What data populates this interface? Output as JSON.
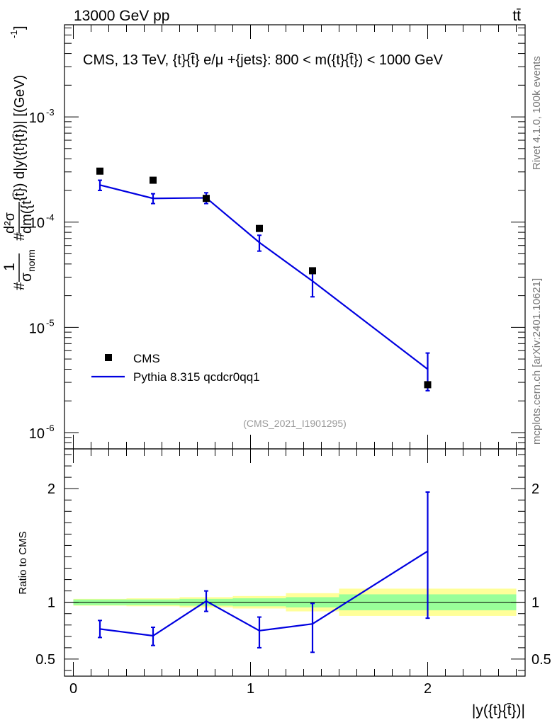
{
  "header": {
    "energy_label": "13000 GeV pp",
    "process_label": "tt̄"
  },
  "side_labels": {
    "rivet": "Rivet 4.1.0,  100k events",
    "mcplots": "mcplots.cern.ch [arXiv:2401.10621]"
  },
  "chart_data": [
    {
      "type": "scatter",
      "panel": "main",
      "title": "CMS, 13 TeV, {t}{t̄} e/μ +{jets}: 800 < m({t}{t̄}) < 1000 GeV",
      "ylabel": "#1/σnorm #d²σ/dm({t}{t̄}) d|y({t}{t̄})| [(GeV)⁻¹]",
      "ylabel_parts": {
        "prefix1": "#",
        "one": "1",
        "sigma_norm": "σ",
        "norm_sub": "norm",
        "prefix2": "#",
        "numerator": "d²σ",
        "numerator_suffix": "{t̄}) d|y({t}{t̄})| [(GeV)",
        "exponent": "-1",
        "close": "]",
        "denominator": "dm({t"
      },
      "yscale": "log",
      "ylim": [
        7e-07,
        0.0075
      ],
      "xlim": [
        -0.05,
        2.55
      ],
      "ytick_exponents": [
        -6,
        -5,
        -4,
        -3
      ],
      "watermark": "(CMS_2021_I1901295)",
      "legend": [
        {
          "label": "CMS",
          "marker": "square",
          "color": "#000000"
        },
        {
          "label": "Pythia 8.315 qcdcr0qq1",
          "marker": "line",
          "color": "#0000e0"
        }
      ],
      "series": [
        {
          "name": "CMS",
          "x": [
            0.15,
            0.45,
            0.75,
            1.05,
            1.35,
            2.0
          ],
          "values": [
            0.000305,
            0.00025,
            0.000168,
            8.7e-05,
            3.45e-05,
            2.85e-06
          ]
        },
        {
          "name": "Pythia 8.315 qcdcr0qq1",
          "x": [
            0.15,
            0.45,
            0.75,
            1.05,
            1.35,
            2.0
          ],
          "values": [
            0.000225,
            0.000168,
            0.00017,
            6.4e-05,
            2.75e-05,
            4e-06
          ],
          "err_low": [
            2.5e-05,
            1.8e-05,
            2e-05,
            1.1e-05,
            8e-06,
            1.5e-06
          ],
          "err_high": [
            2.5e-05,
            1.8e-05,
            2e-05,
            1.1e-05,
            8e-06,
            1.7e-06
          ]
        }
      ]
    },
    {
      "type": "line",
      "panel": "ratio",
      "ylabel": "Ratio to CMS",
      "xlabel": "|y({t}{t̄})|",
      "ylim": [
        0.35,
        2.35
      ],
      "xlim": [
        -0.05,
        2.55
      ],
      "yticks": [
        0.5,
        1,
        2
      ],
      "ytick_labels": [
        "0.5",
        "1",
        "2"
      ],
      "xticks": [
        0,
        1,
        2
      ],
      "xtick_labels": [
        "0",
        "1",
        "2"
      ],
      "band_bins": [
        {
          "x0": 0.0,
          "x1": 0.3,
          "inner": 0.025,
          "outer": 0.03
        },
        {
          "x0": 0.3,
          "x1": 0.6,
          "inner": 0.025,
          "outer": 0.035
        },
        {
          "x0": 0.6,
          "x1": 0.9,
          "inner": 0.03,
          "outer": 0.045
        },
        {
          "x0": 0.9,
          "x1": 1.2,
          "inner": 0.035,
          "outer": 0.055
        },
        {
          "x0": 1.2,
          "x1": 1.5,
          "inner": 0.045,
          "outer": 0.08
        },
        {
          "x0": 1.5,
          "x1": 2.5,
          "inner": 0.07,
          "outer": 0.12
        }
      ],
      "series": [
        {
          "name": "Pythia 8.315 qcdcr0qq1 / CMS",
          "x": [
            0.15,
            0.45,
            0.75,
            1.05,
            1.35,
            2.0
          ],
          "values": [
            0.765,
            0.705,
            1.01,
            0.75,
            0.81,
            1.45
          ],
          "err_low": [
            0.075,
            0.085,
            0.09,
            0.15,
            0.25,
            0.59
          ],
          "err_high": [
            0.075,
            0.075,
            0.09,
            0.12,
            0.18,
            0.52
          ]
        }
      ]
    }
  ]
}
